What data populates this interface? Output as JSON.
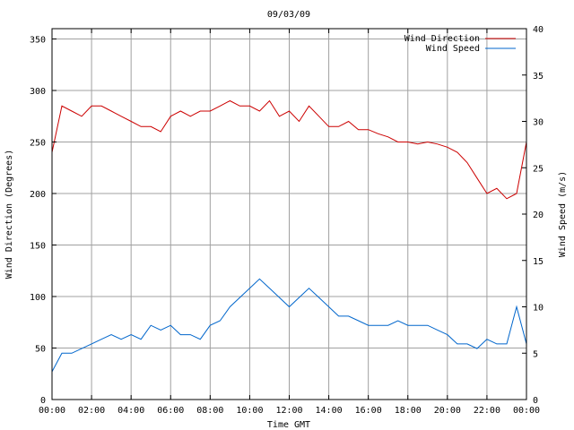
{
  "chart_data": {
    "type": "line",
    "title": "09/03/09",
    "xlabel": "Time GMT",
    "ylabel_left": "Wind Direction (Degrees)",
    "ylabel_right": "Wind Speed (m/s)",
    "xlim_hours": [
      0,
      24
    ],
    "x_tick_labels": [
      "00:00",
      "02:00",
      "04:00",
      "06:00",
      "08:00",
      "10:00",
      "12:00",
      "14:00",
      "16:00",
      "18:00",
      "20:00",
      "22:00",
      "00:00"
    ],
    "ylim_left": [
      0,
      360
    ],
    "y_ticks_left": [
      0,
      50,
      100,
      150,
      200,
      250,
      300,
      350
    ],
    "ylim_right": [
      0,
      40
    ],
    "y_ticks_right": [
      0,
      5,
      10,
      15,
      20,
      25,
      30,
      35,
      40
    ],
    "grid": true,
    "legend": "top-right",
    "series": [
      {
        "name": "Wind Direction",
        "axis": "left",
        "color": "#cc0000",
        "x": [
          0,
          0.5,
          1,
          1.5,
          2,
          2.5,
          3,
          3.5,
          4,
          4.5,
          5,
          5.5,
          6,
          6.5,
          7,
          7.5,
          8,
          8.5,
          9,
          9.5,
          10,
          10.5,
          11,
          11.5,
          12,
          12.5,
          13,
          13.5,
          14,
          14.5,
          15,
          15.5,
          16,
          16.5,
          17,
          17.5,
          18,
          18.5,
          19,
          19.5,
          20,
          20.5,
          21,
          21.5,
          22,
          22.5,
          23,
          23.5,
          24
        ],
        "values": [
          240,
          285,
          280,
          275,
          285,
          285,
          280,
          275,
          270,
          265,
          265,
          260,
          275,
          280,
          275,
          280,
          280,
          285,
          290,
          285,
          285,
          280,
          290,
          275,
          280,
          270,
          285,
          275,
          265,
          265,
          270,
          262,
          262,
          258,
          255,
          250,
          250,
          248,
          250,
          248,
          245,
          240,
          230,
          215,
          200,
          205,
          195,
          200,
          250
        ]
      },
      {
        "name": "Wind Speed",
        "axis": "right",
        "color": "#0066cc",
        "x": [
          0,
          0.5,
          1,
          1.5,
          2,
          2.5,
          3,
          3.5,
          4,
          4.5,
          5,
          5.5,
          6,
          6.5,
          7,
          7.5,
          8,
          8.5,
          9,
          9.5,
          10,
          10.5,
          11,
          11.5,
          12,
          12.5,
          13,
          13.5,
          14,
          14.5,
          15,
          15.5,
          16,
          16.5,
          17,
          17.5,
          18,
          18.5,
          19,
          19.5,
          20,
          20.5,
          21,
          21.5,
          22,
          22.5,
          23,
          23.5,
          24
        ],
        "values": [
          3,
          5,
          5,
          5.5,
          6,
          6.5,
          7,
          6.5,
          7,
          6.5,
          8,
          7.5,
          8,
          7,
          7,
          6.5,
          8,
          8.5,
          10,
          11,
          12,
          13,
          12,
          11,
          10,
          11,
          12,
          11,
          10,
          9,
          9,
          8.5,
          8,
          8,
          8,
          8.5,
          8,
          8,
          8,
          7.5,
          7,
          6,
          6,
          5.5,
          6.5,
          6,
          6,
          10,
          6
        ]
      }
    ]
  }
}
